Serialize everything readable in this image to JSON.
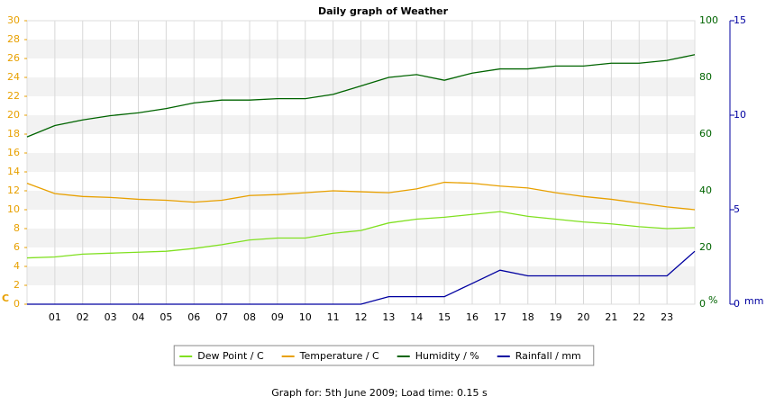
{
  "chart_data": {
    "type": "line",
    "title": "Daily graph of Weather",
    "footer": "Graph for: 5th June 2009; Load time: 0.15 s",
    "x": [
      0,
      1,
      2,
      3,
      4,
      5,
      6,
      7,
      8,
      9,
      10,
      11,
      12,
      13,
      14,
      15,
      16,
      17,
      18,
      19,
      20,
      21,
      22,
      23,
      24
    ],
    "xlim": [
      0,
      24
    ],
    "xticks": [
      {
        "value": 1,
        "label": "01"
      },
      {
        "value": 2,
        "label": "02"
      },
      {
        "value": 3,
        "label": "03"
      },
      {
        "value": 4,
        "label": "04"
      },
      {
        "value": 5,
        "label": "05"
      },
      {
        "value": 6,
        "label": "06"
      },
      {
        "value": 7,
        "label": "07"
      },
      {
        "value": 8,
        "label": "08"
      },
      {
        "value": 9,
        "label": "09"
      },
      {
        "value": 10,
        "label": "10"
      },
      {
        "value": 11,
        "label": "11"
      },
      {
        "value": 12,
        "label": "12"
      },
      {
        "value": 13,
        "label": "13"
      },
      {
        "value": 14,
        "label": "14"
      },
      {
        "value": 15,
        "label": "15"
      },
      {
        "value": 16,
        "label": "16"
      },
      {
        "value": 17,
        "label": "17"
      },
      {
        "value": 18,
        "label": "18"
      },
      {
        "value": 19,
        "label": "19"
      },
      {
        "value": 20,
        "label": "20"
      },
      {
        "value": 21,
        "label": "21"
      },
      {
        "value": 22,
        "label": "22"
      },
      {
        "value": 23,
        "label": "23"
      }
    ],
    "ylabel": "C",
    "ylim": [
      0,
      30
    ],
    "yticks": [
      0,
      2,
      4,
      6,
      8,
      10,
      12,
      14,
      16,
      18,
      20,
      22,
      24,
      26,
      28,
      30
    ],
    "y2label": "%",
    "y2lim": [
      0,
      100
    ],
    "y2ticks": [
      0,
      20,
      40,
      60,
      80,
      100
    ],
    "y3label": "mm",
    "y3lim": [
      0,
      15
    ],
    "y3ticks": [
      0,
      5,
      10,
      15
    ],
    "grid": true,
    "legend": "bottom",
    "series": [
      {
        "name": "Dew Point / C",
        "color": "#80e020",
        "axis": "y",
        "values": [
          4.9,
          5.0,
          5.3,
          5.4,
          5.5,
          5.6,
          5.9,
          6.3,
          6.8,
          7.0,
          7.0,
          7.5,
          7.8,
          8.6,
          9.0,
          9.2,
          9.5,
          9.8,
          9.3,
          9.0,
          8.7,
          8.5,
          8.2,
          8.0,
          8.1
        ]
      },
      {
        "name": "Temperature / C",
        "color": "#e8a000",
        "axis": "y",
        "values": [
          12.8,
          11.7,
          11.4,
          11.3,
          11.1,
          11.0,
          10.8,
          11.0,
          11.5,
          11.6,
          11.8,
          12.0,
          11.9,
          11.8,
          12.2,
          12.9,
          12.8,
          12.5,
          12.3,
          11.8,
          11.4,
          11.1,
          10.7,
          10.3,
          10.0
        ]
      },
      {
        "name": "Humidity / %",
        "color": "#006400",
        "axis": "y2",
        "values": [
          59,
          63,
          65,
          66.5,
          67.5,
          69,
          71,
          72,
          72,
          72.5,
          72.5,
          74,
          77,
          80,
          81,
          79,
          81.5,
          83,
          83,
          84,
          84,
          85,
          85,
          86,
          88
        ]
      },
      {
        "name": "Rainfall / mm",
        "color": "#0000a0",
        "axis": "y3",
        "values": [
          0,
          0,
          0,
          0,
          0,
          0,
          0,
          0,
          0,
          0,
          0,
          0,
          0,
          0.4,
          0.4,
          0.4,
          1.1,
          1.8,
          1.5,
          1.5,
          1.5,
          1.5,
          1.5,
          1.5,
          2.8
        ]
      }
    ],
    "colors": {
      "y": "#e8a000",
      "y2": "#006400",
      "y3": "#0000a0"
    }
  }
}
